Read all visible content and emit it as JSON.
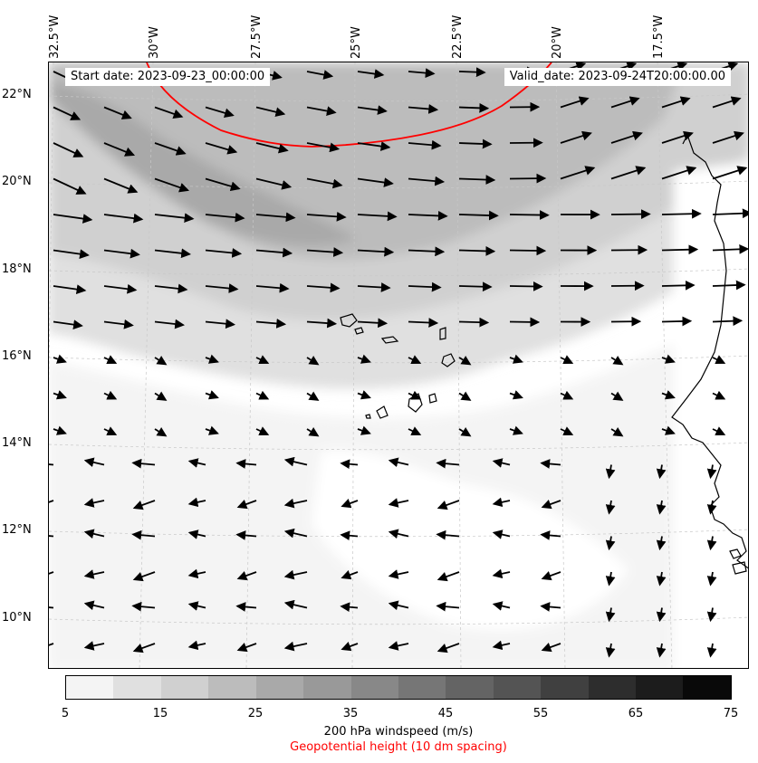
{
  "map": {
    "lon_labels": [
      "32.5°W",
      "30°W",
      "27.5°W",
      "25°W",
      "22.5°W",
      "20°W",
      "17.5°W"
    ],
    "lat_labels": [
      "22°N",
      "20°N",
      "18°N",
      "16°N",
      "14°N",
      "12°N",
      "10°N"
    ],
    "start_date": "Start date: 2023-09-23_00:00:00",
    "valid_date": "Valid_date: 2023-09-24T20:00:00.00",
    "contour_color": "#ff0000",
    "coast_color": "#000000"
  },
  "colorbar": {
    "colors": [
      "#f4f4f4",
      "#e0e0e0",
      "#d0d0d0",
      "#bcbcbc",
      "#a9a9a9",
      "#999999",
      "#888888",
      "#767676",
      "#646464",
      "#545454",
      "#404040",
      "#2d2d2d",
      "#1c1c1c",
      "#090909"
    ],
    "ticks": [
      "5",
      "15",
      "25",
      "35",
      "45",
      "55",
      "65",
      "75"
    ],
    "label": "200 hPa windspeed (m/s)",
    "sublabel": "Geopotential height (10 dm spacing)",
    "sublabel_color": "#ff0000"
  }
}
